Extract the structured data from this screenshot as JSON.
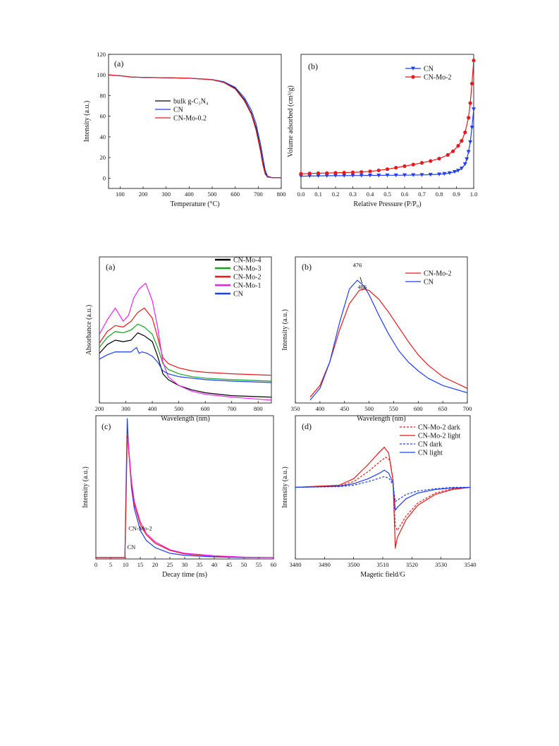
{
  "chart_data": [
    {
      "id": "tga",
      "type": "line",
      "panel_label": "(a)",
      "xlabel": "Temperature (°C)",
      "ylabel": "Intensity (a.u.)",
      "xlim": [
        50,
        800
      ],
      "ylim": [
        -10,
        120
      ],
      "xticks": [
        100,
        200,
        300,
        400,
        500,
        600,
        700,
        800
      ],
      "yticks": [
        0,
        20,
        40,
        60,
        80,
        100,
        120
      ],
      "legend_position": "center-left",
      "series": [
        {
          "name": "bulk g-C₃N₄",
          "color": "#000000",
          "x": [
            50,
            100,
            150,
            200,
            300,
            400,
            500,
            550,
            600,
            640,
            670,
            690,
            710,
            720,
            730,
            740,
            760,
            800
          ],
          "y": [
            100,
            99.3,
            98,
            97.6,
            97.3,
            96.9,
            95.5,
            93,
            87,
            76,
            63,
            49,
            28,
            15,
            5,
            1.5,
            0.5,
            0.5
          ]
        },
        {
          "name": "CN",
          "color": "#1f3ff0",
          "x": [
            50,
            100,
            150,
            200,
            300,
            400,
            500,
            550,
            600,
            640,
            670,
            690,
            710,
            720,
            730,
            740,
            760,
            800
          ],
          "y": [
            100,
            99.3,
            98,
            97.6,
            97.3,
            96.9,
            95.6,
            93.5,
            88,
            78,
            66,
            53,
            33,
            20,
            8,
            2,
            0.5,
            0.5
          ]
        },
        {
          "name": "CN-Mo-0.2",
          "color": "#e41a1c",
          "x": [
            50,
            100,
            150,
            200,
            300,
            400,
            500,
            550,
            600,
            640,
            670,
            690,
            710,
            720,
            730,
            740,
            760,
            800
          ],
          "y": [
            100,
            99.3,
            98,
            97.6,
            97.3,
            96.9,
            95.4,
            92.8,
            86.5,
            75,
            62,
            47,
            26,
            13,
            4,
            1,
            0.5,
            0.5
          ]
        }
      ]
    },
    {
      "id": "bet",
      "type": "line",
      "panel_label": "(b)",
      "xlabel": "Relative Pressure (P/P₀)",
      "ylabel": "Volume adsorbed (cm³/g)",
      "xlim": [
        0.0,
        1.0
      ],
      "ylim": [
        -10,
        100
      ],
      "xticks": [
        0.0,
        0.1,
        0.2,
        0.3,
        0.4,
        0.5,
        0.6,
        0.7,
        0.8,
        0.9,
        1.0
      ],
      "yticks": [],
      "legend_position": "top",
      "series": [
        {
          "name": "CN",
          "color": "#1f3ff0",
          "marker": "triangle-down",
          "x": [
            0.0,
            0.05,
            0.1,
            0.15,
            0.2,
            0.25,
            0.3,
            0.35,
            0.4,
            0.45,
            0.5,
            0.55,
            0.6,
            0.65,
            0.7,
            0.75,
            0.8,
            0.83,
            0.86,
            0.89,
            0.91,
            0.93,
            0.95,
            0.96,
            0.97,
            0.98,
            0.99,
            1.0
          ],
          "y": [
            0,
            0.2,
            0.3,
            0.4,
            0.5,
            0.5,
            0.6,
            0.6,
            0.7,
            0.7,
            0.8,
            0.8,
            0.9,
            1.0,
            1.1,
            1.3,
            1.6,
            2.0,
            2.6,
            3.6,
            4.6,
            6.4,
            10,
            14,
            20,
            28,
            40,
            55
          ]
        },
        {
          "name": "CN-Mo-2",
          "color": "#e41a1c",
          "marker": "circle",
          "x": [
            0.0,
            0.05,
            0.1,
            0.15,
            0.2,
            0.25,
            0.3,
            0.35,
            0.4,
            0.45,
            0.5,
            0.55,
            0.6,
            0.65,
            0.7,
            0.75,
            0.8,
            0.85,
            0.88,
            0.91,
            0.93,
            0.95,
            0.97,
            0.98,
            0.99,
            1.0
          ],
          "y": [
            2,
            2.3,
            2.5,
            2.6,
            2.8,
            3.0,
            3.2,
            3.5,
            4.0,
            4.8,
            5.8,
            7,
            8.3,
            9.6,
            11,
            12.5,
            14.5,
            17.5,
            20.5,
            25,
            29,
            36,
            48,
            60,
            76,
            95
          ]
        }
      ]
    },
    {
      "id": "uvvis",
      "type": "line",
      "panel_label": "(a)",
      "xlabel": "Wavelength (nm)",
      "ylabel": "Absorbance (a.u.)",
      "xlim": [
        200,
        850
      ],
      "ylim": [
        0,
        1.0
      ],
      "xticks": [
        200,
        300,
        400,
        500,
        600,
        700,
        800
      ],
      "yticks": [],
      "legend_position": "top-right",
      "series": [
        {
          "name": "CN-Mo-4",
          "color": "#000000",
          "x": [
            200,
            230,
            260,
            290,
            320,
            345,
            370,
            400,
            420,
            440,
            460,
            500,
            550,
            600,
            700,
            850
          ],
          "y": [
            0.34,
            0.4,
            0.43,
            0.42,
            0.43,
            0.48,
            0.46,
            0.42,
            0.32,
            0.2,
            0.16,
            0.12,
            0.09,
            0.07,
            0.05,
            0.04
          ]
        },
        {
          "name": "CN-Mo-3",
          "color": "#12a51c",
          "x": [
            200,
            230,
            260,
            290,
            320,
            345,
            370,
            400,
            420,
            440,
            460,
            500,
            550,
            600,
            700,
            850
          ],
          "y": [
            0.38,
            0.45,
            0.49,
            0.48,
            0.5,
            0.54,
            0.52,
            0.47,
            0.38,
            0.27,
            0.23,
            0.2,
            0.18,
            0.17,
            0.16,
            0.15
          ]
        },
        {
          "name": "CN-Mo-2",
          "color": "#e41a1c",
          "x": [
            200,
            230,
            260,
            290,
            320,
            345,
            370,
            400,
            420,
            440,
            460,
            500,
            550,
            600,
            700,
            850
          ],
          "y": [
            0.41,
            0.49,
            0.53,
            0.52,
            0.56,
            0.62,
            0.65,
            0.58,
            0.45,
            0.31,
            0.27,
            0.24,
            0.22,
            0.21,
            0.2,
            0.19
          ]
        },
        {
          "name": "CN-Mo-1",
          "color": "#ee22ee",
          "x": [
            200,
            230,
            260,
            290,
            310,
            330,
            350,
            375,
            400,
            420,
            440,
            460,
            500,
            550,
            600,
            700,
            850
          ],
          "y": [
            0.47,
            0.57,
            0.65,
            0.56,
            0.6,
            0.72,
            0.78,
            0.82,
            0.7,
            0.52,
            0.28,
            0.18,
            0.12,
            0.08,
            0.06,
            0.04,
            0.02
          ]
        },
        {
          "name": "CN",
          "color": "#1f3ff0",
          "x": [
            200,
            230,
            260,
            290,
            320,
            340,
            350,
            360,
            380,
            400,
            420,
            440,
            460,
            500,
            550,
            600,
            700,
            850
          ],
          "y": [
            0.3,
            0.33,
            0.35,
            0.35,
            0.35,
            0.38,
            0.34,
            0.35,
            0.34,
            0.32,
            0.28,
            0.22,
            0.2,
            0.18,
            0.17,
            0.16,
            0.15,
            0.14
          ]
        }
      ]
    },
    {
      "id": "pl",
      "type": "line",
      "panel_label": "(b)",
      "xlabel": "Wavelength (nm)",
      "ylabel": "Intensity (a.u.)",
      "xlim": [
        350,
        700
      ],
      "ylim": [
        0,
        1.0
      ],
      "xticks": [
        350,
        400,
        450,
        500,
        550,
        600,
        650,
        700
      ],
      "yticks": [],
      "legend_position": "top-right",
      "annotations": [
        {
          "text": "476",
          "x": 476,
          "y": 0.93
        },
        {
          "text": "486",
          "x": 486,
          "y": 0.78
        }
      ],
      "series": [
        {
          "name": "CN-Mo-2",
          "color": "#e41a1c",
          "x": [
            380,
            400,
            420,
            440,
            460,
            480,
            490,
            500,
            520,
            540,
            560,
            580,
            600,
            620,
            650,
            700
          ],
          "y": [
            0.04,
            0.12,
            0.28,
            0.5,
            0.68,
            0.77,
            0.78,
            0.77,
            0.71,
            0.62,
            0.52,
            0.42,
            0.33,
            0.26,
            0.18,
            0.1
          ]
        },
        {
          "name": "CN",
          "color": "#1f3ff0",
          "x": [
            380,
            400,
            420,
            440,
            460,
            476,
            490,
            500,
            520,
            540,
            560,
            580,
            600,
            620,
            650,
            700
          ],
          "y": [
            0.02,
            0.1,
            0.28,
            0.55,
            0.78,
            0.84,
            0.8,
            0.74,
            0.6,
            0.47,
            0.36,
            0.28,
            0.22,
            0.17,
            0.12,
            0.07
          ]
        }
      ]
    },
    {
      "id": "decay",
      "type": "line",
      "panel_label": "(c)",
      "xlabel": "Decay time (ns)",
      "ylabel": "Intensity (a.u.)",
      "xlim": [
        0,
        60
      ],
      "ylim": [
        0,
        1.0
      ],
      "xticks": [
        0,
        5,
        10,
        15,
        20,
        25,
        30,
        35,
        40,
        45,
        50,
        55,
        60
      ],
      "yticks": [],
      "legend_position": "none",
      "annotations": [
        {
          "text": "CN-Mo-2",
          "x": 15,
          "y": 0.2
        },
        {
          "text": "CN",
          "x": 12,
          "y": 0.07
        }
      ],
      "series": [
        {
          "name": "CN",
          "color": "#1f3ff0",
          "x": [
            0,
            9.8,
            10.2,
            10.6,
            11,
            12,
            13,
            15,
            17,
            20,
            25,
            30,
            40,
            50,
            60
          ],
          "y": [
            0.01,
            0.01,
            0.5,
            0.98,
            0.8,
            0.5,
            0.35,
            0.2,
            0.13,
            0.08,
            0.04,
            0.025,
            0.015,
            0.01,
            0.01
          ]
        },
        {
          "name": "CN-Mo-2",
          "color": "#e41a1c",
          "x": [
            0,
            9.8,
            10.2,
            10.6,
            11,
            12,
            13,
            15,
            17,
            20,
            25,
            30,
            40,
            50,
            60
          ],
          "y": [
            0.01,
            0.01,
            0.4,
            0.86,
            0.78,
            0.52,
            0.38,
            0.24,
            0.17,
            0.11,
            0.06,
            0.035,
            0.02,
            0.012,
            0.01
          ]
        },
        {
          "name": "",
          "color": "#ee22ee",
          "x": [
            10.6,
            11,
            12,
            13,
            15,
            17,
            20,
            25,
            30,
            40,
            50,
            60
          ],
          "y": [
            0.84,
            0.8,
            0.55,
            0.4,
            0.26,
            0.18,
            0.12,
            0.065,
            0.04,
            0.022,
            0.013,
            0.01
          ]
        }
      ]
    },
    {
      "id": "epr",
      "type": "line",
      "panel_label": "(d)",
      "xlabel": "Magetic field/G",
      "ylabel": "Intensity (a.u.)",
      "xlim": [
        3480,
        3540
      ],
      "ylim": [
        -1,
        1
      ],
      "xticks": [
        3480,
        3490,
        3500,
        3510,
        3520,
        3530,
        3540
      ],
      "yticks": [],
      "legend_position": "top-right",
      "series": [
        {
          "name": "CN-Mo-2 dark",
          "color": "#e41a1c",
          "dash": "dashed",
          "x": [
            3480,
            3495,
            3500,
            3505,
            3509,
            3511,
            3512.5,
            3513.5,
            3514.3,
            3515,
            3518,
            3522,
            3528,
            3534,
            3540
          ],
          "y": [
            0,
            0.02,
            0.08,
            0.22,
            0.36,
            0.42,
            0.38,
            0.1,
            -0.55,
            -0.6,
            -0.4,
            -0.22,
            -0.08,
            -0.02,
            0
          ]
        },
        {
          "name": "CN-Mo-2 light",
          "color": "#e41a1c",
          "dash": "solid",
          "x": [
            3480,
            3495,
            3500,
            3505,
            3509,
            3510.5,
            3512,
            3513.5,
            3514.3,
            3515,
            3518,
            3522,
            3528,
            3534,
            3540
          ],
          "y": [
            0,
            0.03,
            0.12,
            0.32,
            0.5,
            0.56,
            0.48,
            0.1,
            -0.85,
            -0.7,
            -0.45,
            -0.25,
            -0.1,
            -0.03,
            0
          ]
        },
        {
          "name": "CN dark",
          "color": "#1f3ff0",
          "dash": "dashed",
          "x": [
            3480,
            3495,
            3500,
            3505,
            3509,
            3510.5,
            3512,
            3513.5,
            3514.3,
            3515,
            3518,
            3522,
            3528,
            3534,
            3540
          ],
          "y": [
            0,
            0.01,
            0.03,
            0.08,
            0.13,
            0.15,
            0.13,
            0.04,
            -0.2,
            -0.18,
            -0.1,
            -0.05,
            -0.02,
            0,
            0
          ]
        },
        {
          "name": "CN light",
          "color": "#1f3ff0",
          "dash": "solid",
          "x": [
            3480,
            3495,
            3500,
            3505,
            3509,
            3510.5,
            3512,
            3513.5,
            3514.3,
            3515,
            3518,
            3522,
            3528,
            3534,
            3540
          ],
          "y": [
            0,
            0.015,
            0.05,
            0.12,
            0.2,
            0.24,
            0.2,
            0.06,
            -0.32,
            -0.28,
            -0.16,
            -0.08,
            -0.03,
            -0.01,
            0
          ]
        }
      ]
    }
  ]
}
